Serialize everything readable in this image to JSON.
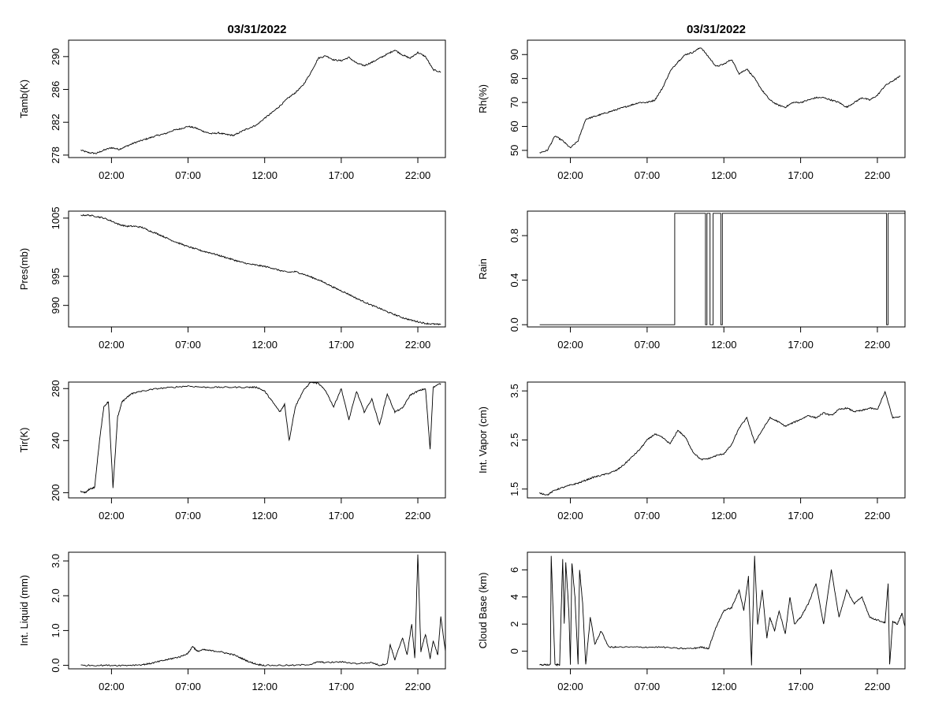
{
  "chart_data": [
    {
      "type": "line",
      "title": "03/31/2022",
      "ylabel": "Tamb(K)",
      "ylim": [
        277.7,
        292
      ],
      "yticks": [
        278,
        282,
        286,
        290
      ],
      "xlim": [
        -0.8,
        23.8
      ],
      "xticks": [
        "02:00",
        "07:00",
        "12:00",
        "17:00",
        "22:00"
      ],
      "xtick_hours": [
        2,
        7,
        12,
        17,
        22
      ],
      "x_hours": [
        0,
        0.5,
        1,
        1.5,
        2,
        2.5,
        3,
        3.5,
        4,
        4.5,
        5,
        5.5,
        6,
        6.5,
        7,
        7.5,
        8,
        8.5,
        9,
        9.5,
        10,
        10.5,
        11,
        11.5,
        12,
        12.5,
        13,
        13.5,
        14,
        14.5,
        15,
        15.5,
        16,
        16.5,
        17,
        17.5,
        18,
        18.5,
        19,
        19.5,
        20,
        20.5,
        21,
        21.5,
        22,
        22.5,
        23,
        23.5
      ],
      "values": [
        278.6,
        278.3,
        278.2,
        278.6,
        278.9,
        278.7,
        279.1,
        279.5,
        279.8,
        280.1,
        280.4,
        280.6,
        281.0,
        281.2,
        281.5,
        281.3,
        280.9,
        280.6,
        280.7,
        280.5,
        280.4,
        280.9,
        281.3,
        281.7,
        282.5,
        283.2,
        284.0,
        284.9,
        285.6,
        286.5,
        288.0,
        289.8,
        290.1,
        289.6,
        289.5,
        289.9,
        289.2,
        288.9,
        289.3,
        289.8,
        290.3,
        290.8,
        290.2,
        289.8,
        290.5,
        290.0,
        288.4,
        288.1
      ]
    },
    {
      "type": "line",
      "title": "03/31/2022",
      "ylabel": "Rh(%)",
      "ylim": [
        47,
        96
      ],
      "yticks": [
        50,
        60,
        70,
        80,
        90
      ],
      "xlim": [
        -0.8,
        23.8
      ],
      "xticks": [
        "02:00",
        "07:00",
        "12:00",
        "17:00",
        "22:00"
      ],
      "xtick_hours": [
        2,
        7,
        12,
        17,
        22
      ],
      "x_hours": [
        0,
        0.5,
        1,
        1.5,
        2,
        2.5,
        3,
        3.5,
        4,
        4.5,
        5,
        5.5,
        6,
        6.5,
        7,
        7.5,
        8,
        8.5,
        9,
        9.5,
        10,
        10.5,
        11,
        11.5,
        12,
        12.5,
        13,
        13.5,
        14,
        14.5,
        15,
        15.5,
        16,
        16.5,
        17,
        17.5,
        18,
        18.5,
        19,
        19.5,
        20,
        20.5,
        21,
        21.5,
        22,
        22.5,
        23,
        23.5
      ],
      "values": [
        49,
        50,
        56,
        54,
        51,
        54,
        63,
        64,
        65,
        66,
        67,
        68,
        69,
        70,
        70,
        71,
        76,
        83,
        87,
        90,
        91,
        93,
        89,
        85,
        86,
        88,
        82,
        84,
        80,
        75,
        71,
        69,
        68,
        70,
        70,
        71,
        72,
        72,
        71,
        70,
        68,
        70,
        72,
        71,
        73,
        77,
        79,
        81
      ]
    },
    {
      "type": "line",
      "title": "",
      "ylabel": "Pres(mb)",
      "ylim": [
        986.3,
        1006.2
      ],
      "yticks": [
        990,
        995,
        1005
      ],
      "xlim": [
        -0.8,
        23.8
      ],
      "xticks": [
        "02:00",
        "07:00",
        "12:00",
        "17:00",
        "22:00"
      ],
      "xtick_hours": [
        2,
        7,
        12,
        17,
        22
      ],
      "x_hours": [
        0,
        0.5,
        1,
        1.5,
        2,
        2.5,
        3,
        3.5,
        4,
        4.5,
        5,
        5.5,
        6,
        6.5,
        7,
        7.5,
        8,
        8.5,
        9,
        9.5,
        10,
        10.5,
        11,
        11.5,
        12,
        12.5,
        13,
        13.5,
        14,
        14.5,
        15,
        15.5,
        16,
        16.5,
        17,
        17.5,
        18,
        18.5,
        19,
        19.5,
        20,
        20.5,
        21,
        21.5,
        22,
        22.5,
        23,
        23.5
      ],
      "values": [
        1005.5,
        1005.5,
        1005.3,
        1005,
        1004.5,
        1003.9,
        1003.6,
        1003.6,
        1003.4,
        1002.8,
        1002.3,
        1001.7,
        1001.1,
        1000.6,
        1000.1,
        999.7,
        999.3,
        999,
        998.6,
        998.2,
        997.8,
        997.4,
        997.1,
        996.9,
        996.7,
        996.4,
        996,
        995.7,
        995.8,
        995.4,
        994.9,
        994.4,
        993.8,
        993.1,
        992.5,
        991.9,
        991.2,
        990.6,
        990,
        989.5,
        988.9,
        988.4,
        987.9,
        987.5,
        987.2,
        986.9,
        986.8,
        986.7
      ]
    },
    {
      "type": "step",
      "title": "",
      "ylabel": "Rain",
      "ylim": [
        -0.02,
        1.02
      ],
      "yticks": [
        0.0,
        0.4,
        0.8
      ],
      "ytick_labels": [
        "0.0",
        "0.4",
        "0.8"
      ],
      "xlim": [
        -0.8,
        23.8
      ],
      "xticks": [
        "02:00",
        "07:00",
        "12:00",
        "17:00",
        "22:00"
      ],
      "xtick_hours": [
        2,
        7,
        12,
        17,
        22
      ],
      "x_hours": [
        0,
        8.8,
        8.8,
        10.8,
        10.8,
        10.9,
        10.9,
        11.1,
        11.1,
        11.3,
        11.3,
        11.8,
        11.8,
        11.9,
        11.9,
        22.6,
        22.6,
        22.7,
        22.7,
        23.8,
        23.8
      ],
      "values": [
        0,
        0,
        1,
        1,
        0,
        0,
        1,
        1,
        0,
        0,
        1,
        1,
        0,
        0,
        1,
        1,
        0,
        0,
        1,
        1,
        0
      ]
    },
    {
      "type": "line",
      "title": "",
      "ylabel": "Tir(K)",
      "ylim": [
        196,
        285
      ],
      "yticks": [
        200,
        240,
        280
      ],
      "xlim": [
        -0.8,
        23.8
      ],
      "xticks": [
        "02:00",
        "07:00",
        "12:00",
        "17:00",
        "22:00"
      ],
      "xtick_hours": [
        2,
        7,
        12,
        17,
        22
      ],
      "x_hours": [
        0,
        0.3,
        0.6,
        0.9,
        1.2,
        1.5,
        1.8,
        2.1,
        2.4,
        2.7,
        3,
        3.3,
        3.6,
        4,
        5,
        6,
        7,
        8,
        9,
        10,
        11,
        11.5,
        12,
        12.5,
        13,
        13.3,
        13.6,
        14,
        14.5,
        15,
        15.5,
        16,
        16.5,
        17,
        17.5,
        18,
        18.5,
        19,
        19.5,
        20,
        20.5,
        21,
        21.5,
        22,
        22.5,
        22.8,
        23,
        23.5
      ],
      "values": [
        201,
        200,
        203,
        204,
        238,
        266,
        270,
        204,
        258,
        270,
        273,
        276,
        277,
        278,
        280,
        281,
        282,
        281,
        281,
        281,
        281,
        281,
        278,
        270,
        262,
        268,
        240,
        266,
        278,
        285,
        284,
        278,
        266,
        280,
        256,
        278,
        262,
        272,
        252,
        276,
        262,
        265,
        275,
        278,
        280,
        233,
        281,
        284
      ]
    },
    {
      "type": "line",
      "title": "",
      "ylabel": "Int. Vapor (cm)",
      "ylim": [
        1.32,
        3.68
      ],
      "yticks": [
        1.5,
        2.5,
        3.5
      ],
      "ytick_labels": [
        "1.5",
        "2.5",
        "3.5"
      ],
      "xlim": [
        -0.8,
        23.8
      ],
      "xticks": [
        "02:00",
        "07:00",
        "12:00",
        "17:00",
        "22:00"
      ],
      "xtick_hours": [
        2,
        7,
        12,
        17,
        22
      ],
      "x_hours": [
        0,
        0.5,
        1,
        1.5,
        2,
        2.5,
        3,
        3.5,
        4,
        4.5,
        5,
        5.5,
        6,
        6.5,
        7,
        7.5,
        8,
        8.5,
        9,
        9.5,
        10,
        10.5,
        11,
        11.5,
        12,
        12.5,
        13,
        13.5,
        14,
        14.5,
        15,
        15.5,
        16,
        16.5,
        17,
        17.5,
        18,
        18.5,
        19,
        19.5,
        20,
        20.5,
        21,
        21.5,
        22,
        22.5,
        23,
        23.5
      ],
      "values": [
        1.42,
        1.38,
        1.48,
        1.53,
        1.58,
        1.62,
        1.68,
        1.74,
        1.78,
        1.82,
        1.88,
        2.0,
        2.15,
        2.3,
        2.5,
        2.62,
        2.55,
        2.42,
        2.7,
        2.55,
        2.25,
        2.1,
        2.12,
        2.18,
        2.22,
        2.4,
        2.75,
        2.95,
        2.45,
        2.7,
        2.95,
        2.88,
        2.78,
        2.85,
        2.92,
        3.0,
        2.95,
        3.05,
        3.0,
        3.12,
        3.15,
        3.08,
        3.1,
        3.15,
        3.12,
        3.48,
        2.95,
        2.98
      ]
    },
    {
      "type": "line",
      "title": "",
      "ylabel": "Int. Liquid (mm)",
      "ylim": [
        -0.1,
        3.25
      ],
      "yticks": [
        0.0,
        1.0,
        2.0,
        3.0
      ],
      "ytick_labels": [
        "0.0",
        "1.0",
        "2.0",
        "3.0"
      ],
      "xlim": [
        -0.8,
        23.8
      ],
      "xticks": [
        "02:00",
        "07:00",
        "12:00",
        "17:00",
        "22:00"
      ],
      "xtick_hours": [
        2,
        7,
        12,
        17,
        22
      ],
      "x_hours": [
        0,
        1,
        2,
        3,
        4,
        4.5,
        5,
        5.5,
        6,
        6.5,
        7,
        7.3,
        7.6,
        8,
        8.5,
        9,
        9.5,
        10,
        10.5,
        11,
        11.5,
        12,
        13,
        14,
        15,
        15.5,
        16,
        17,
        18,
        19,
        19.5,
        20,
        20.2,
        20.5,
        21,
        21.3,
        21.6,
        21.8,
        22,
        22.2,
        22.5,
        22.8,
        23,
        23.3,
        23.5,
        23.8
      ],
      "values": [
        0,
        0,
        0,
        0,
        0.02,
        0.05,
        0.1,
        0.15,
        0.2,
        0.25,
        0.35,
        0.55,
        0.4,
        0.45,
        0.42,
        0.4,
        0.35,
        0.3,
        0.2,
        0.1,
        0.03,
        0,
        0,
        0,
        0.03,
        0.1,
        0.08,
        0.1,
        0.05,
        0.08,
        0,
        0.05,
        0.6,
        0.15,
        0.8,
        0.3,
        1.2,
        0.2,
        3.2,
        0.4,
        0.9,
        0.2,
        0.7,
        0.3,
        1.4,
        0.4
      ]
    },
    {
      "type": "line",
      "title": "",
      "ylabel": "Cloud Base (km)",
      "ylim": [
        -1.3,
        7.3
      ],
      "yticks": [
        0,
        2,
        4,
        6
      ],
      "xlim": [
        -0.8,
        23.8
      ],
      "xticks": [
        "02:00",
        "07:00",
        "12:00",
        "17:00",
        "22:00"
      ],
      "xtick_hours": [
        2,
        7,
        12,
        17,
        22
      ],
      "x_hours": [
        0,
        0.4,
        0.7,
        0.75,
        1.0,
        1.3,
        1.5,
        1.6,
        1.7,
        1.9,
        2.0,
        2.1,
        2.3,
        2.5,
        2.6,
        2.8,
        3.0,
        3.3,
        3.6,
        4,
        4.5,
        5,
        6,
        7,
        8,
        9,
        10,
        10.5,
        11,
        11.5,
        12,
        12.5,
        13,
        13.3,
        13.6,
        13.8,
        14.0,
        14.2,
        14.5,
        14.8,
        15,
        15.3,
        15.6,
        16,
        16.3,
        16.6,
        17,
        17.5,
        18,
        18.5,
        19,
        19.5,
        20,
        20.5,
        21,
        21.5,
        22,
        22.5,
        22.7,
        22.8,
        23,
        23.3,
        23.6,
        23.8
      ],
      "values": [
        -1,
        -1,
        -1,
        7,
        -1,
        -1,
        6.8,
        2.0,
        6.5,
        3.0,
        -1,
        6.5,
        4.0,
        -1,
        6.0,
        3.5,
        -1,
        2.5,
        0.5,
        1.5,
        0.3,
        0.3,
        0.3,
        0.3,
        0.3,
        0.2,
        0.2,
        0.3,
        0.2,
        1.8,
        3.0,
        3.2,
        4.5,
        3.0,
        5.5,
        -1,
        7.0,
        2.0,
        4.5,
        1.0,
        2.5,
        1.5,
        3.0,
        1.3,
        4.0,
        2.0,
        2.5,
        3.5,
        5.0,
        2.0,
        6.0,
        2.5,
        4.5,
        3.5,
        4.0,
        2.5,
        2.3,
        2.1,
        5.0,
        -1,
        2.2,
        2.0,
        2.8,
        1.8
      ]
    }
  ]
}
